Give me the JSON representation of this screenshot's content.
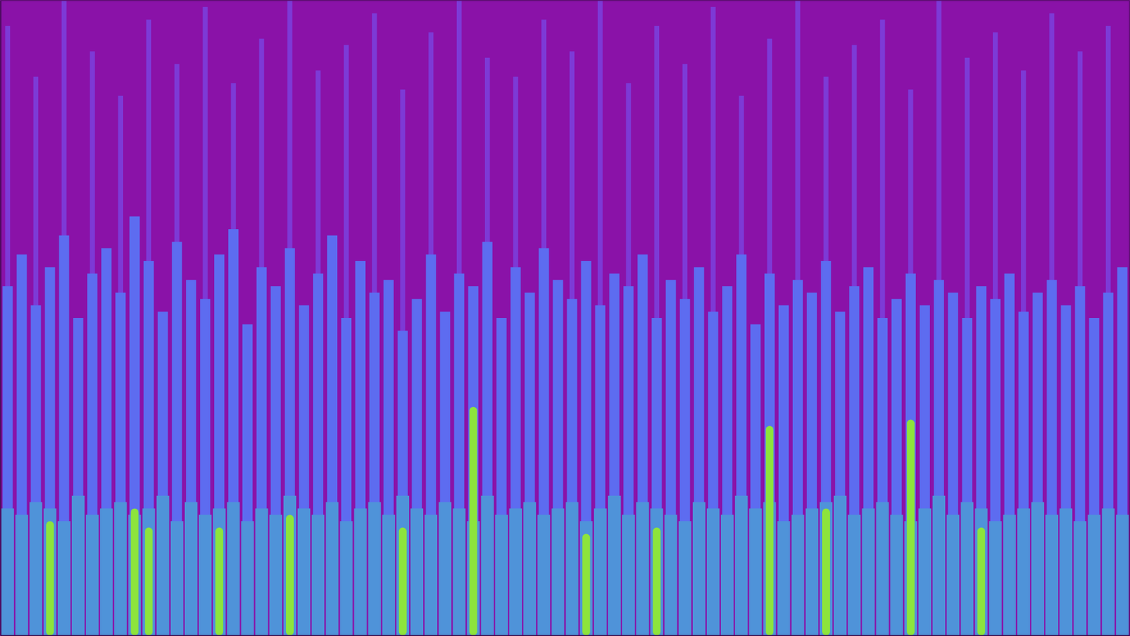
{
  "chart_data": {
    "type": "bar",
    "tick_labels": false,
    "xlim": [
      0,
      80
    ],
    "ylim": [
      0,
      100
    ],
    "x": [
      0.5,
      1.5,
      2.5,
      3.5,
      4.5,
      5.5,
      6.5,
      7.5,
      8.5,
      9.5,
      10.5,
      11.5,
      12.5,
      13.5,
      14.5,
      15.5,
      16.5,
      17.5,
      18.5,
      19.5,
      20.5,
      21.5,
      22.5,
      23.5,
      24.5,
      25.5,
      26.5,
      27.5,
      28.5,
      29.5,
      30.5,
      31.5,
      32.5,
      33.5,
      34.5,
      35.5,
      36.5,
      37.5,
      38.5,
      39.5,
      40.5,
      41.5,
      42.5,
      43.5,
      44.5,
      45.5,
      46.5,
      47.5,
      48.5,
      49.5,
      50.5,
      51.5,
      52.5,
      53.5,
      54.5,
      55.5,
      56.5,
      57.5,
      58.5,
      59.5,
      60.5,
      61.5,
      62.5,
      63.5,
      64.5,
      65.5,
      66.5,
      67.5,
      68.5,
      69.5,
      70.5,
      71.5,
      72.5,
      73.5,
      74.5,
      75.5,
      76.5,
      77.5,
      78.5,
      79.5
    ],
    "series": [
      {
        "color": "#7d3ad6",
        "values": [
          96,
          null,
          88,
          null,
          100,
          null,
          92,
          null,
          85,
          null,
          97,
          null,
          90,
          null,
          99,
          null,
          87,
          null,
          94,
          null,
          100,
          null,
          89,
          null,
          93,
          null,
          98,
          null,
          86,
          null,
          95,
          null,
          100,
          null,
          91,
          null,
          88,
          null,
          97,
          null,
          92,
          null,
          100,
          null,
          87,
          null,
          96,
          null,
          90,
          null,
          99,
          null,
          85,
          null,
          94,
          null,
          100,
          null,
          88,
          null,
          93,
          null,
          97,
          null,
          86,
          null,
          100,
          null,
          91,
          null,
          95,
          null,
          89,
          null,
          98,
          null,
          92,
          null,
          96,
          null
        ]
      },
      {
        "color": "#5d6cf0",
        "values": [
          55,
          60,
          52,
          58,
          63,
          50,
          57,
          61,
          54,
          66,
          59,
          51,
          62,
          56,
          53,
          60,
          64,
          49,
          58,
          55,
          61,
          52,
          57,
          63,
          50,
          59,
          54,
          56,
          48,
          53,
          60,
          51,
          57,
          55,
          62,
          50,
          58,
          54,
          61,
          56,
          53,
          59,
          52,
          57,
          55,
          60,
          50,
          56,
          53,
          58,
          51,
          55,
          60,
          49,
          57,
          52,
          56,
          54,
          59,
          51,
          55,
          58,
          50,
          53,
          57,
          52,
          56,
          54,
          50,
          55,
          53,
          57,
          51,
          54,
          56,
          52,
          55,
          50,
          54,
          58
        ]
      },
      {
        "color": "#4f93d9",
        "values": [
          20,
          19,
          21,
          20,
          18,
          22,
          19,
          20,
          21,
          19,
          20,
          22,
          18,
          21,
          19,
          20,
          21,
          18,
          20,
          19,
          22,
          20,
          19,
          21,
          18,
          20,
          21,
          19,
          22,
          20,
          19,
          21,
          20,
          18,
          22,
          19,
          20,
          21,
          19,
          20,
          21,
          18,
          20,
          22,
          19,
          21,
          20,
          19,
          18,
          21,
          20,
          19,
          22,
          20,
          21,
          18,
          19,
          20,
          21,
          22,
          19,
          20,
          21,
          19,
          18,
          20,
          22,
          19,
          21,
          20,
          18,
          19,
          20,
          21,
          19,
          20,
          18,
          19,
          20,
          19
        ]
      },
      {
        "color": "#8de43c",
        "values": [
          null,
          null,
          null,
          18,
          null,
          null,
          null,
          null,
          null,
          20,
          17,
          null,
          null,
          null,
          null,
          17,
          null,
          null,
          null,
          null,
          19,
          null,
          null,
          null,
          null,
          null,
          null,
          null,
          17,
          null,
          null,
          null,
          null,
          36,
          null,
          null,
          null,
          null,
          null,
          null,
          null,
          16,
          null,
          null,
          null,
          null,
          17,
          null,
          null,
          null,
          null,
          null,
          null,
          null,
          33,
          null,
          null,
          null,
          20,
          null,
          null,
          null,
          null,
          null,
          34,
          null,
          null,
          null,
          null,
          17,
          null,
          null,
          null,
          null,
          null,
          null,
          null,
          null,
          null,
          null
        ]
      }
    ]
  }
}
